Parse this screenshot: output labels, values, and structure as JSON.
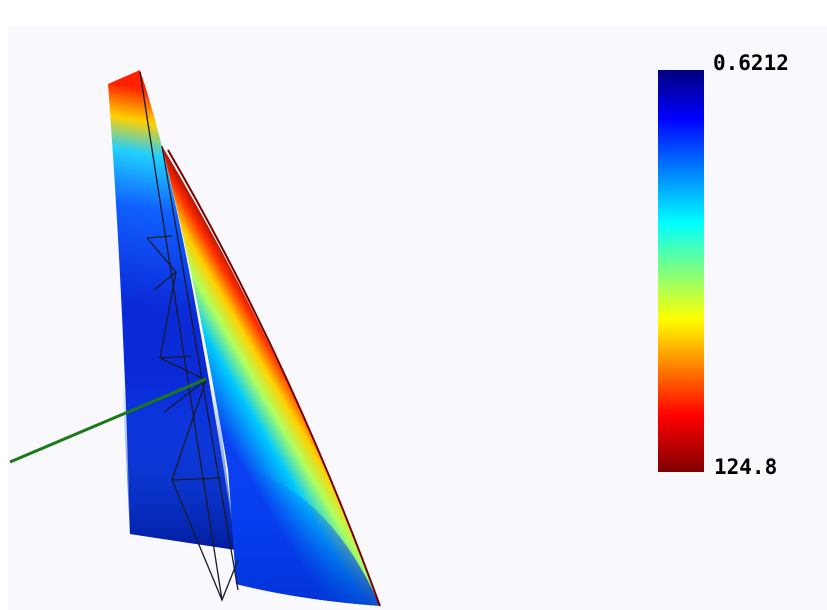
{
  "colorbar": {
    "top_label": "0.6212",
    "bottom_label": "124.8"
  }
}
